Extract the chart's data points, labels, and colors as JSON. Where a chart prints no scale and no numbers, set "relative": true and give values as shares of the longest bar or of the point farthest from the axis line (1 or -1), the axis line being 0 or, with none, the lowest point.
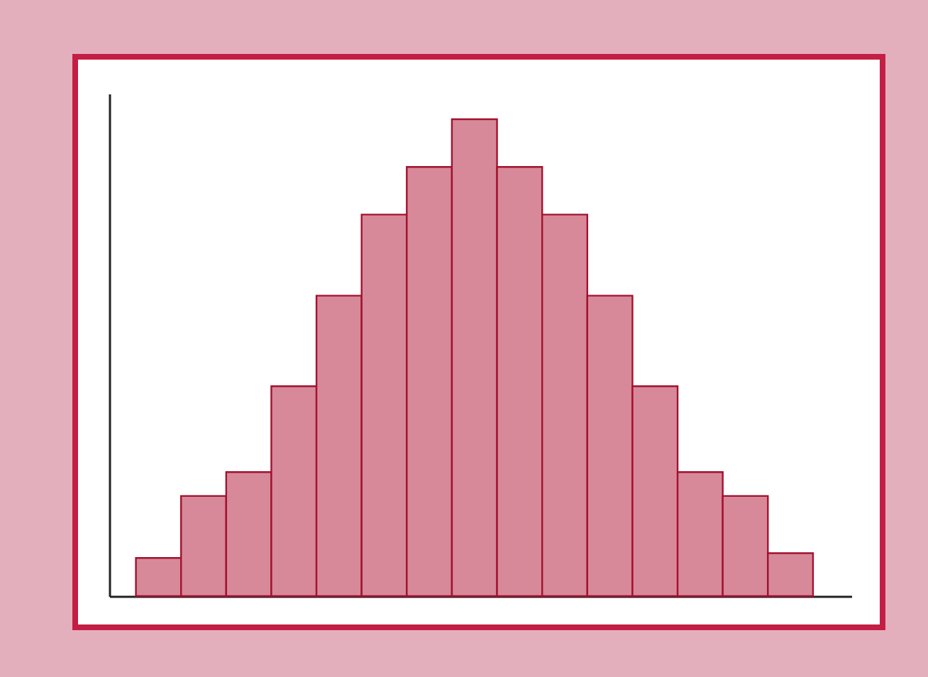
{
  "chart_data": {
    "type": "bar",
    "relative": true,
    "color": "#d7899a",
    "categories": [
      null,
      null,
      null,
      null,
      null,
      null,
      null,
      null,
      null,
      null,
      null,
      null,
      null,
      null,
      null
    ],
    "values": [
      0.08,
      0.21,
      0.26,
      0.44,
      0.63,
      0.8,
      0.9,
      1,
      0.9,
      0.8,
      0.63,
      0.44,
      0.26,
      0.21,
      0.09
    ]
  }
}
